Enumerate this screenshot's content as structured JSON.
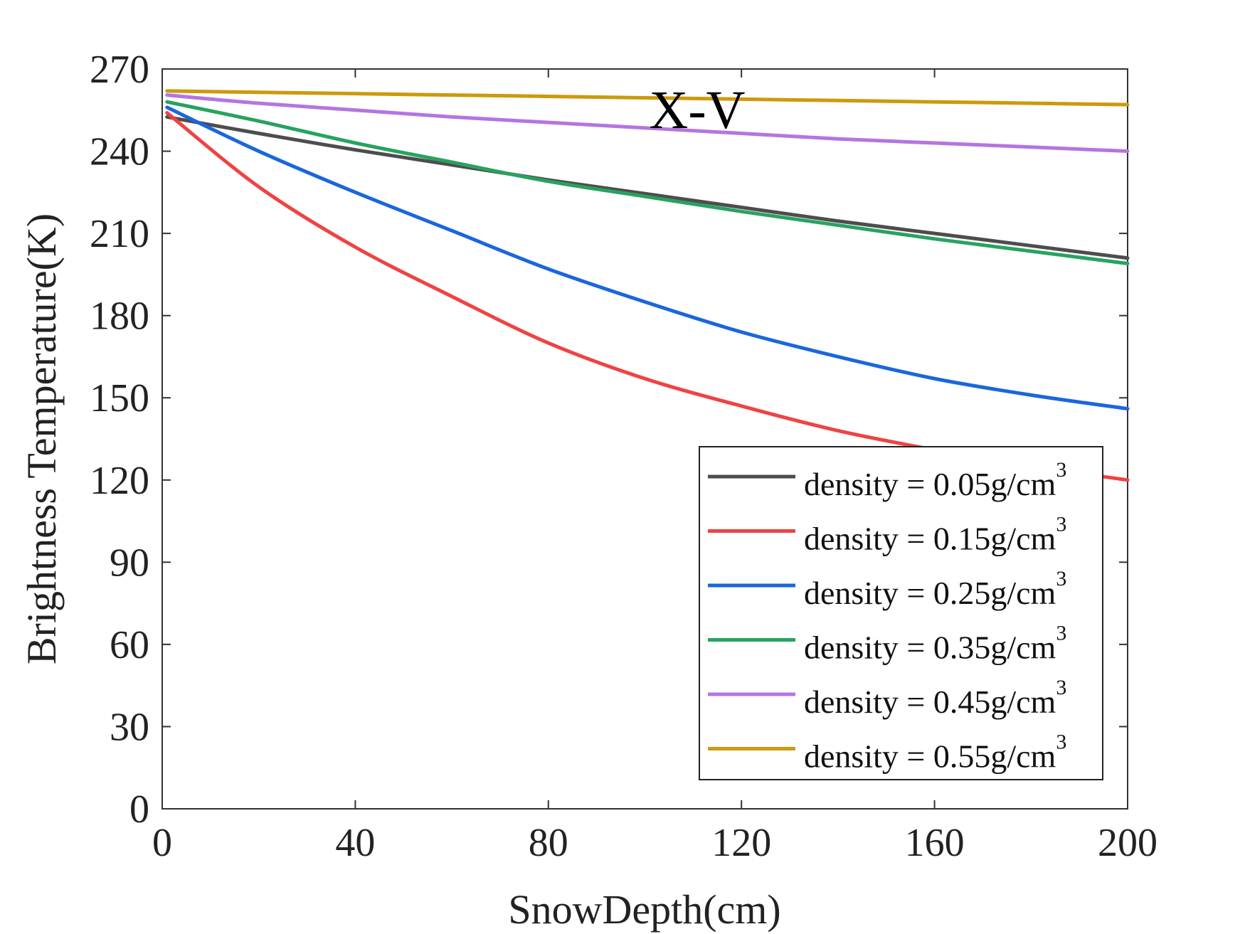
{
  "chart_data": {
    "type": "line",
    "annotation": "X-V",
    "xlabel": "SnowDepth(cm)",
    "ylabel": "Brightness Temperature(K)",
    "xlim": [
      0,
      200
    ],
    "ylim": [
      0,
      270
    ],
    "xticks": [
      0,
      40,
      80,
      120,
      160,
      200
    ],
    "yticks": [
      0,
      30,
      60,
      90,
      120,
      150,
      180,
      210,
      240,
      270
    ],
    "grid": false,
    "legend_position": "bottom-right",
    "legend_unit_suffix": "3",
    "x": [
      1,
      20,
      40,
      60,
      80,
      100,
      120,
      140,
      160,
      180,
      200
    ],
    "series": [
      {
        "name": "density = 0.05g/cm",
        "color": "#4d4d4d",
        "values": [
          252.5,
          246.5,
          240.5,
          235,
          229.5,
          224.5,
          219.5,
          214.5,
          210,
          205.5,
          201
        ]
      },
      {
        "name": "density = 0.15g/cm",
        "color": "#ef4343",
        "values": [
          254,
          227,
          205,
          187,
          170,
          157,
          147,
          138,
          131,
          125,
          120
        ]
      },
      {
        "name": "density = 0.25g/cm",
        "color": "#1a66dd",
        "values": [
          256,
          240,
          225,
          211,
          197,
          185,
          174,
          165,
          157,
          151,
          146
        ]
      },
      {
        "name": "density = 0.35g/cm",
        "color": "#27a35f",
        "values": [
          258,
          251,
          243,
          236,
          229,
          223.5,
          218,
          213,
          208,
          203.5,
          199
        ]
      },
      {
        "name": "density = 0.45g/cm",
        "color": "#b475e0",
        "values": [
          260.5,
          257.5,
          255,
          252.5,
          250.5,
          248.5,
          246.5,
          244.5,
          243,
          241.5,
          240
        ]
      },
      {
        "name": "density = 0.55g/cm",
        "color": "#cc9a0a",
        "values": [
          262,
          261.5,
          261,
          260.5,
          260,
          259.5,
          259,
          258.5,
          258,
          257.5,
          257
        ]
      }
    ]
  }
}
